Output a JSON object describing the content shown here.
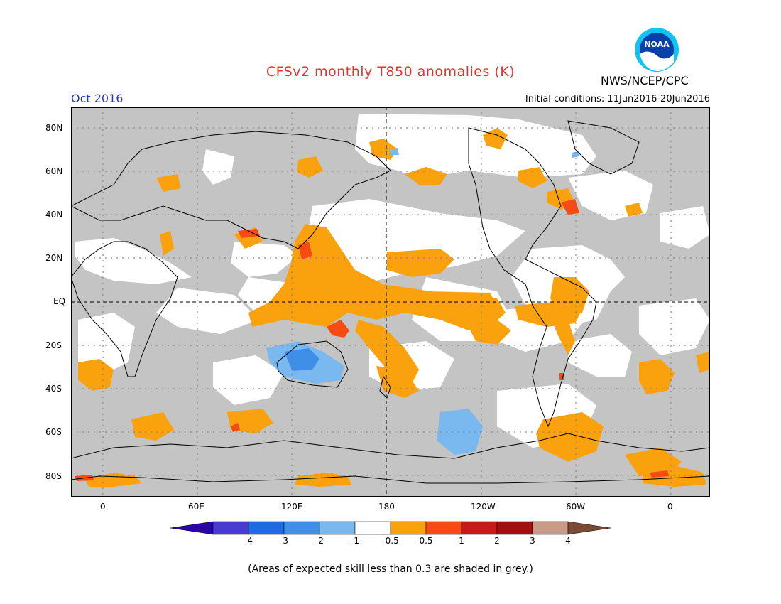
{
  "header": {
    "title": "CFSv2 monthly T850 anomalies (K)",
    "agency": "NWS/NCEP/CPC",
    "valid_month": "Oct 2016",
    "initial_conditions": "Initial conditions: 11Jun2016-20Jun2016",
    "logo_text": "NOAA"
  },
  "map": {
    "lat_labels": [
      "80N",
      "60N",
      "40N",
      "20N",
      "EQ",
      "20S",
      "40S",
      "60S",
      "80S"
    ],
    "lon_labels": [
      "0",
      "60E",
      "120E",
      "180",
      "120W",
      "60W",
      "0"
    ],
    "projection": "cylindrical equidistant, 0-360 longitude",
    "dashed_reference_lines": [
      "EQ",
      "180"
    ]
  },
  "colorbar": {
    "labels": [
      "-4",
      "-3",
      "-2",
      "-1",
      "-0.5",
      "0.5",
      "1",
      "2",
      "3",
      "4"
    ],
    "colors": [
      "#2a06a8",
      "#4a3bd0",
      "#1e6ae0",
      "#3f8ee8",
      "#7ab8f0",
      "#ffffff",
      "#f9a20e",
      "#f64c14",
      "#c41a1a",
      "#a01010",
      "#c89c88",
      "#7a4a35"
    ]
  },
  "note": "(Areas of expected skill less than 0.3 are shaded in grey.)",
  "colors": {
    "grey_skill": "#c4c4c4",
    "warm_05_1": "#f9a20e",
    "warm_1_2": "#f64c14",
    "cool_05_1": "#7ab8f0",
    "cool_1_2": "#3f8ee8",
    "title": "#e8322d",
    "date": "#2436e0"
  }
}
